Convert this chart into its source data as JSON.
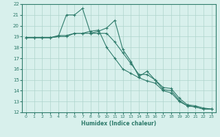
{
  "title": "",
  "xlabel": "Humidex (Indice chaleur)",
  "xlim": [
    -0.5,
    23.5
  ],
  "ylim": [
    12,
    22
  ],
  "yticks": [
    12,
    13,
    14,
    15,
    16,
    17,
    18,
    19,
    20,
    21,
    22
  ],
  "xticks": [
    0,
    1,
    2,
    3,
    4,
    5,
    6,
    7,
    8,
    9,
    10,
    11,
    12,
    13,
    14,
    15,
    16,
    17,
    18,
    19,
    20,
    21,
    22,
    23
  ],
  "color": "#2d7a6a",
  "bg_color": "#d8f0ec",
  "grid_color": "#aed4cc",
  "line1_x": [
    0,
    1,
    2,
    3,
    4,
    5,
    6,
    7,
    8,
    9,
    10,
    11,
    12,
    13,
    14,
    15,
    16,
    17,
    18,
    19,
    20,
    21,
    22,
    23
  ],
  "line1_y": [
    18.9,
    18.9,
    18.9,
    18.9,
    19.0,
    21.0,
    21.0,
    21.6,
    19.3,
    19.5,
    19.8,
    20.5,
    17.8,
    16.7,
    15.3,
    15.8,
    15.0,
    14.1,
    14.0,
    13.1,
    12.6,
    12.5,
    12.3,
    12.3
  ],
  "line2_x": [
    0,
    1,
    2,
    3,
    4,
    5,
    6,
    7,
    8,
    9,
    10,
    11,
    12,
    13,
    14,
    15,
    16,
    17,
    18,
    19,
    20,
    21,
    22,
    23
  ],
  "line2_y": [
    18.9,
    18.9,
    18.9,
    18.9,
    19.1,
    19.1,
    19.3,
    19.3,
    19.5,
    19.6,
    18.0,
    17.0,
    16.0,
    15.6,
    15.2,
    14.9,
    14.7,
    14.0,
    13.8,
    13.0,
    12.6,
    12.5,
    12.3,
    12.3
  ],
  "line3_x": [
    0,
    1,
    2,
    3,
    4,
    5,
    6,
    7,
    8,
    9,
    10,
    11,
    12,
    13,
    14,
    15,
    16,
    17,
    18,
    19,
    20,
    21,
    22,
    23
  ],
  "line3_y": [
    18.9,
    18.9,
    18.9,
    18.9,
    19.0,
    19.0,
    19.3,
    19.3,
    19.3,
    19.3,
    19.3,
    18.5,
    17.5,
    16.5,
    15.5,
    15.5,
    15.0,
    14.3,
    14.2,
    13.3,
    12.7,
    12.6,
    12.4,
    12.3
  ]
}
